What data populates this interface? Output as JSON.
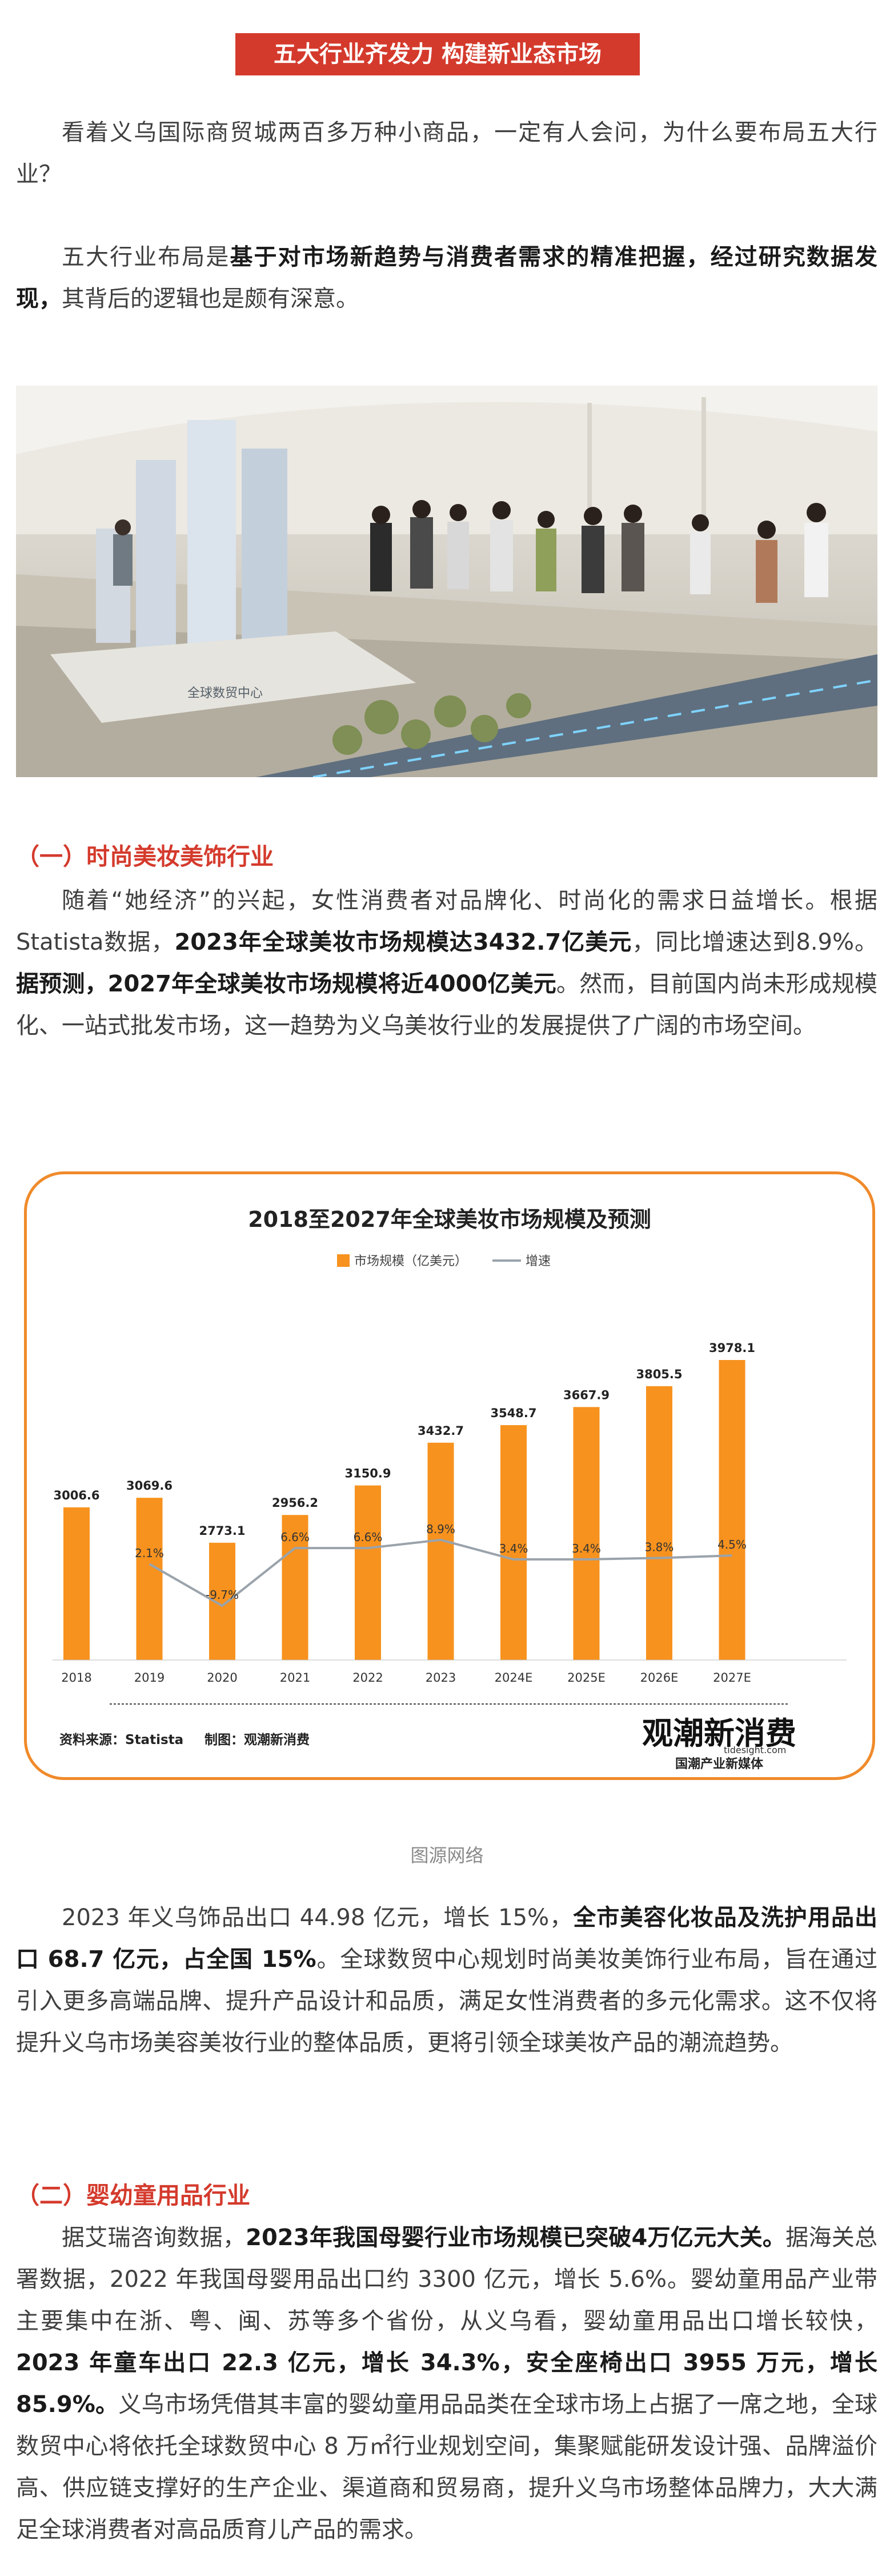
{
  "banner": {
    "title": "五大行业齐发力 构建新业态市场"
  },
  "intro": {
    "p1": "看着义乌国际商贸城两百多万种小商品，一定有人会问，为什么要布局五大行业？",
    "p2_a": "五大行业布局是",
    "p2_b": "基于对市场新趋势与消费者需求的精准把握，经过研究数据发现，",
    "p2_c": "其背后的逻辑也是颇有深意。"
  },
  "photo": {
    "sign_text": "全球数贸中心"
  },
  "section1": {
    "title": "（一）时尚美妆美饰行业",
    "p1_a": "随着“她经济”的兴起，女性消费者对品牌化、时尚化的需求日益增长。根据Statista数据，",
    "p1_b": "2023年全球美妆市场规模达3432.7亿美元",
    "p1_c": "，同比增速达到8.9%。",
    "p1_d": "据预测，2027年全球美妆市场规模将近4000亿美元",
    "p1_e": "。然而，目前国内尚未形成规模化、一站式批发市场，这一趋势为义乌美妆行业的发展提供了广阔的市场空间。",
    "p2_a": "2023 年义乌饰品出口 44.98 亿元，增长 15%，",
    "p2_b": "全市美容化妆品及洗护用品出口 68.7 亿元，占全国 15%",
    "p2_c": "。全球数贸中心规划时尚美妆美饰行业布局，旨在通过引入更多高端品牌、提升产品设计和品质，满足女性消费者的多元化需求。这不仅将提升义乌市场美容美妆行业的整体品质，更将引领全球美妆产品的潮流趋势。"
  },
  "chart_data": {
    "type": "bar",
    "title": "2018至2027年全球美妆市场规模及预测",
    "legend": {
      "bar_label": "市场规模（亿美元）",
      "line_label": "增速",
      "placement": "top-center"
    },
    "categories": [
      "2018",
      "2019",
      "2020",
      "2021",
      "2022",
      "2023",
      "2024E",
      "2025E",
      "2026E",
      "2027E"
    ],
    "values": [
      3006.6,
      3069.6,
      2773.1,
      2956.2,
      3150.9,
      3432.7,
      3548.7,
      3667.9,
      3805.5,
      3978.1
    ],
    "value_labels": [
      "3006.6",
      "3069.6",
      "2773.1",
      "2956.2",
      "3150.9",
      "3432.7",
      "3548.7",
      "3667.9",
      "3805.5",
      "3978.1"
    ],
    "growth": [
      null,
      2.1,
      -9.7,
      6.6,
      6.6,
      8.9,
      3.4,
      3.4,
      3.8,
      4.5
    ],
    "growth_labels": [
      "",
      "2.1%",
      "-9.7%",
      "6.6%",
      "6.6%",
      "8.9%",
      "3.4%",
      "3.4%",
      "3.8%",
      "4.5%"
    ],
    "source": "资料来源：Statista",
    "maker": "制图：观潮新消费",
    "logo_text": "观潮新消费",
    "logo_url": "tidesight.com",
    "logo_sub": "国潮产业新媒体",
    "colors": {
      "bar": "#f7921e",
      "line": "#9aa3ab",
      "frame": "#f08a2a"
    }
  },
  "caption": "图源网络",
  "section2": {
    "title": "（二）婴幼童用品行业",
    "p1_a": "据艾瑞咨询数据，",
    "p1_b": "2023年我国母婴行业市场规模已突破4万亿元大关。",
    "p1_c": "据海关总署数据，2022 年我国母婴用品出口约 3300 亿元，增长 5.6%。婴幼童用品产业带主要集中在浙、粤、闽、苏等多个省份，从义乌看，婴幼童用品出口增长较快，",
    "p1_d": "2023 年童车出口 22.3 亿元，增长 34.3%，安全座椅出口 3955 万元，增长 85.9%。",
    "p1_e": "义乌市场凭借其丰富的婴幼童用品品类在全球市场上占据了一席之地，全球数贸中心将依托全球数贸中心 8 万㎡行业规划空间，集聚赋能研发设计强、品牌溢价高、供应链支撑好的生产企业、渠道商和贸易商，提升义乌市场整体品牌力，大大满足全球消费者对高品质育儿产品的需求。"
  }
}
